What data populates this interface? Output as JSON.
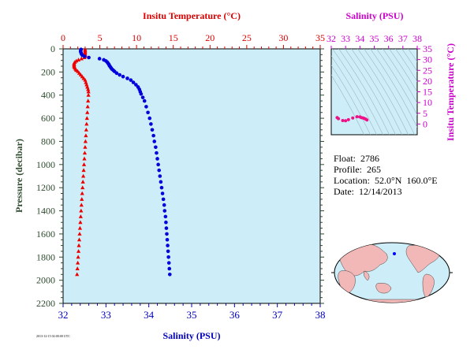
{
  "chart_data": [
    {
      "type": "scatter",
      "top_axis_label": "Insitu Temperature (°C)",
      "bottom_axis_label": "Salinity (PSU)",
      "left_axis_label": "Pressure (decibar)",
      "temperature_axis": {
        "range": [
          0,
          35
        ],
        "ticks": [
          "0",
          "5",
          "10",
          "15",
          "20",
          "25",
          "30",
          "35"
        ],
        "color": "#dd0000"
      },
      "salinity_axis": {
        "range": [
          32,
          38
        ],
        "ticks": [
          "32",
          "33",
          "34",
          "35",
          "36",
          "37",
          "38"
        ],
        "color": "#0000bb"
      },
      "pressure_axis": {
        "range": [
          0,
          2200
        ],
        "reversed": true,
        "ticks": [
          "0",
          "200",
          "400",
          "600",
          "800",
          "1000",
          "1200",
          "1400",
          "1600",
          "1800",
          "2000",
          "2200"
        ],
        "color": "#2e4a2e"
      },
      "background": "#cdeef8",
      "grid": false,
      "series": [
        {
          "name": "Temperature",
          "color": "#ee0000",
          "marker": "triangle",
          "points": [
            [
              3.0,
              5
            ],
            [
              3.0,
              15
            ],
            [
              3.0,
              25
            ],
            [
              3.0,
              35
            ],
            [
              3.0,
              45
            ],
            [
              3.0,
              55
            ],
            [
              3.0,
              65
            ],
            [
              2.9,
              75
            ],
            [
              2.5,
              85
            ],
            [
              2.1,
              95
            ],
            [
              1.8,
              105
            ],
            [
              1.6,
              115
            ],
            [
              1.5,
              125
            ],
            [
              1.5,
              135
            ],
            [
              1.5,
              145
            ],
            [
              1.5,
              155
            ],
            [
              1.6,
              165
            ],
            [
              1.7,
              175
            ],
            [
              1.8,
              185
            ],
            [
              2.0,
              195
            ],
            [
              2.2,
              210
            ],
            [
              2.4,
              225
            ],
            [
              2.6,
              240
            ],
            [
              2.8,
              255
            ],
            [
              3.0,
              270
            ],
            [
              3.1,
              290
            ],
            [
              3.2,
              310
            ],
            [
              3.3,
              330
            ],
            [
              3.4,
              350
            ],
            [
              3.45,
              370
            ],
            [
              3.45,
              400
            ],
            [
              3.4,
              450
            ],
            [
              3.35,
              500
            ],
            [
              3.3,
              550
            ],
            [
              3.25,
              600
            ],
            [
              3.2,
              650
            ],
            [
              3.15,
              700
            ],
            [
              3.1,
              750
            ],
            [
              3.05,
              800
            ],
            [
              3.0,
              850
            ],
            [
              2.95,
              900
            ],
            [
              2.9,
              950
            ],
            [
              2.85,
              1000
            ],
            [
              2.8,
              1050
            ],
            [
              2.75,
              1100
            ],
            [
              2.7,
              1150
            ],
            [
              2.65,
              1200
            ],
            [
              2.6,
              1250
            ],
            [
              2.55,
              1300
            ],
            [
              2.5,
              1350
            ],
            [
              2.45,
              1400
            ],
            [
              2.4,
              1450
            ],
            [
              2.35,
              1500
            ],
            [
              2.3,
              1550
            ],
            [
              2.25,
              1600
            ],
            [
              2.2,
              1650
            ],
            [
              2.15,
              1700
            ],
            [
              2.1,
              1750
            ],
            [
              2.05,
              1800
            ],
            [
              2.0,
              1850
            ],
            [
              1.95,
              1900
            ],
            [
              1.9,
              1950
            ]
          ]
        },
        {
          "name": "Salinity",
          "color": "#0000dd",
          "marker": "circle",
          "points": [
            [
              32.42,
              5
            ],
            [
              32.41,
              15
            ],
            [
              32.41,
              25
            ],
            [
              32.42,
              35
            ],
            [
              32.43,
              45
            ],
            [
              32.45,
              55
            ],
            [
              32.5,
              65
            ],
            [
              32.6,
              75
            ],
            [
              32.85,
              85
            ],
            [
              32.95,
              95
            ],
            [
              33.0,
              105
            ],
            [
              33.03,
              115
            ],
            [
              33.05,
              125
            ],
            [
              33.07,
              135
            ],
            [
              33.08,
              145
            ],
            [
              33.1,
              155
            ],
            [
              33.12,
              165
            ],
            [
              33.14,
              175
            ],
            [
              33.17,
              185
            ],
            [
              33.2,
              195
            ],
            [
              33.25,
              210
            ],
            [
              33.32,
              225
            ],
            [
              33.4,
              240
            ],
            [
              33.5,
              255
            ],
            [
              33.58,
              270
            ],
            [
              33.64,
              290
            ],
            [
              33.7,
              310
            ],
            [
              33.75,
              330
            ],
            [
              33.78,
              350
            ],
            [
              33.8,
              370
            ],
            [
              33.82,
              390
            ],
            [
              33.86,
              420
            ],
            [
              33.9,
              450
            ],
            [
              33.94,
              500
            ],
            [
              33.98,
              550
            ],
            [
              34.02,
              600
            ],
            [
              34.05,
              650
            ],
            [
              34.08,
              700
            ],
            [
              34.11,
              750
            ],
            [
              34.13,
              800
            ],
            [
              34.16,
              850
            ],
            [
              34.18,
              900
            ],
            [
              34.2,
              950
            ],
            [
              34.22,
              1000
            ],
            [
              34.24,
              1050
            ],
            [
              34.26,
              1100
            ],
            [
              34.28,
              1150
            ],
            [
              34.3,
              1200
            ],
            [
              34.32,
              1250
            ],
            [
              34.34,
              1300
            ],
            [
              34.36,
              1350
            ],
            [
              34.37,
              1400
            ],
            [
              34.39,
              1450
            ],
            [
              34.4,
              1500
            ],
            [
              34.41,
              1550
            ],
            [
              34.42,
              1600
            ],
            [
              34.43,
              1650
            ],
            [
              34.44,
              1700
            ],
            [
              34.45,
              1750
            ],
            [
              34.46,
              1800
            ],
            [
              34.47,
              1850
            ],
            [
              34.48,
              1900
            ],
            [
              34.49,
              1950
            ]
          ]
        }
      ]
    },
    {
      "type": "scatter",
      "title": "Salinity (PSU)",
      "ylabel": "Insitu Temperature (°C)",
      "xlim": [
        32,
        38
      ],
      "ylim": [
        -5,
        35
      ],
      "x_ticks": [
        "32",
        "33",
        "34",
        "35",
        "36",
        "37",
        "38"
      ],
      "y_ticks": [
        "0",
        "5",
        "10",
        "15",
        "20",
        "25",
        "30",
        "35"
      ],
      "color": "#cc00cc",
      "series": [
        {
          "name": "T-S profile",
          "color": "#ee1188",
          "marker": "circle",
          "points": [
            [
              32.41,
              3.0
            ],
            [
              32.5,
              2.5
            ],
            [
              32.8,
              1.6
            ],
            [
              33.0,
              1.5
            ],
            [
              33.2,
              2.0
            ],
            [
              33.5,
              2.8
            ],
            [
              33.8,
              3.4
            ],
            [
              34.0,
              3.3
            ],
            [
              34.1,
              3.0
            ],
            [
              34.2,
              2.85
            ],
            [
              34.3,
              2.6
            ],
            [
              34.4,
              2.3
            ],
            [
              34.49,
              1.9
            ]
          ]
        }
      ]
    }
  ],
  "float_info": {
    "float": "Float:  2786",
    "profile": "Profile:  265",
    "location": "Location:  52.0°N  160.0°E",
    "date": "Date:  12/14/2013"
  },
  "map": {
    "land_color": "#f2b7b7",
    "ocean_color": "#cdeef8",
    "marker_color": "#0000ff"
  },
  "credit_text": "2013-12-15 02:00:00 UTC"
}
